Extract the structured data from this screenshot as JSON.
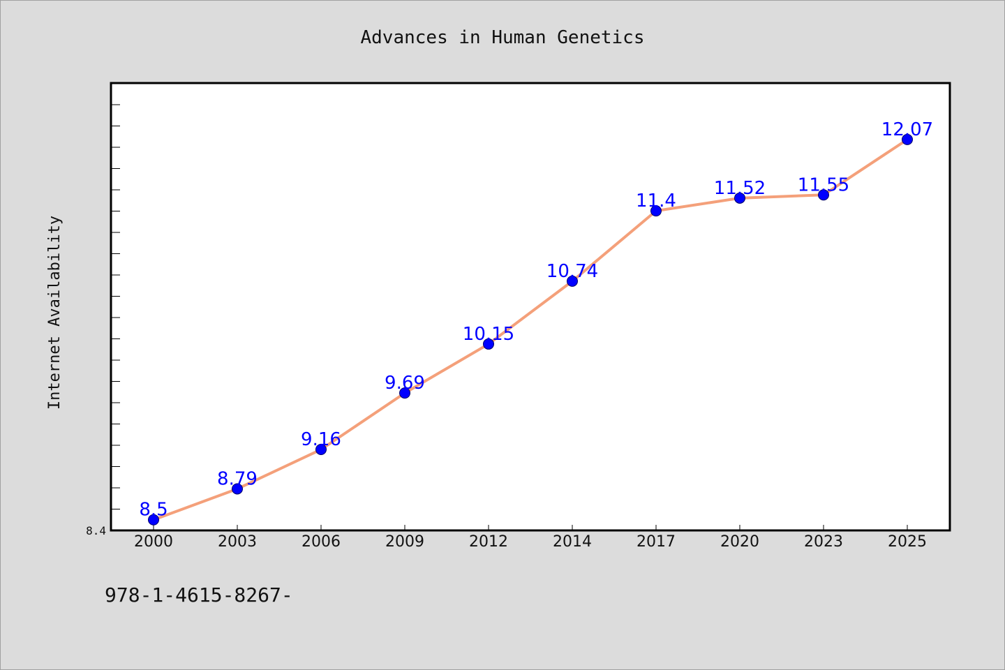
{
  "chart_data": {
    "type": "line",
    "title": "Advances in Human Genetics",
    "ylabel": "Internet Availability",
    "xlabel": "",
    "categories": [
      "2000",
      "2003",
      "2006",
      "2009",
      "2012",
      "2014",
      "2017",
      "2020",
      "2023",
      "2025"
    ],
    "series": [
      {
        "values": [
          8.5,
          8.79,
          9.16,
          9.69,
          10.15,
          10.74,
          11.4,
          11.52,
          11.55,
          12.07
        ],
        "labels": [
          "8.5",
          "8.79",
          "9.16",
          "9.69",
          "10.15",
          "10.74",
          "11.4",
          "11.52",
          "11.55",
          "12.07"
        ]
      }
    ],
    "ylim": [
      8.4,
      12.6
    ],
    "y_min_tick_label": "8.4",
    "grid": false,
    "legend": "none",
    "colors": {
      "line": "#f4a07a",
      "marker": "#0000ff",
      "marker_edge": "#000066",
      "data_label": "#0000ff",
      "plot_bg": "#ffffff",
      "figure_bg": "#dcdcdc"
    }
  },
  "footnote": "978-1-4615-8267-"
}
